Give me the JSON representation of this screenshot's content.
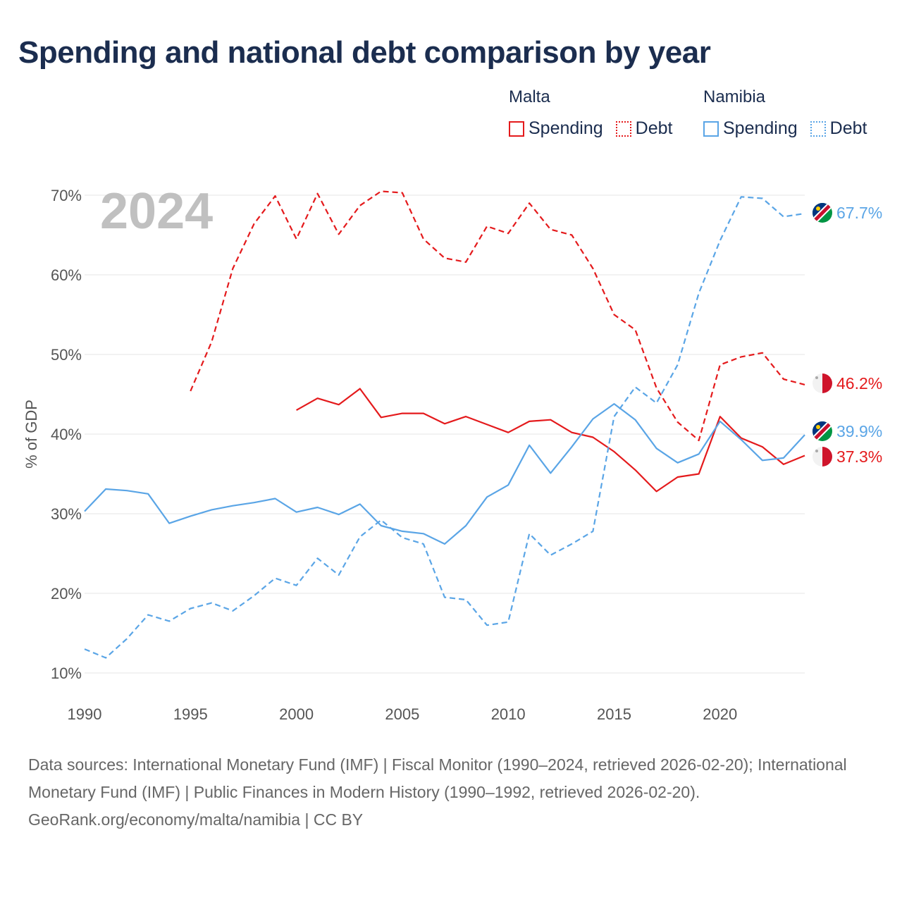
{
  "title": "Spending and national debt comparison by year",
  "legend": {
    "groups": [
      {
        "country": "Malta",
        "items": [
          {
            "label": "Spending",
            "style": "solid",
            "color": "#e41a1c"
          },
          {
            "label": "Debt",
            "style": "dotted",
            "color": "#e41a1c"
          }
        ]
      },
      {
        "country": "Namibia",
        "items": [
          {
            "label": "Spending",
            "style": "solid",
            "color": "#5aa5e6"
          },
          {
            "label": "Debt",
            "style": "dotted",
            "color": "#5aa5e6"
          }
        ]
      }
    ]
  },
  "colors": {
    "malta": "#e41a1c",
    "namibia": "#5aa5e6",
    "grid": "#e6e6e6",
    "axis_text": "#555555",
    "year_watermark": "#c0c0c0"
  },
  "chart_data": {
    "type": "line",
    "year_watermark": "2024",
    "ylabel": "% of GDP",
    "xlabel": "",
    "xlim": [
      1990,
      2024
    ],
    "ylim": [
      10,
      70
    ],
    "x_ticks": [
      1990,
      1995,
      2000,
      2005,
      2010,
      2015,
      2020
    ],
    "y_ticks": [
      10,
      20,
      30,
      40,
      50,
      60,
      70
    ],
    "y_tick_labels": [
      "10%",
      "20%",
      "30%",
      "40%",
      "50%",
      "60%",
      "70%"
    ],
    "grid": true,
    "series": [
      {
        "name": "Malta Spending",
        "country": "malta",
        "dash": false,
        "end_label": "37.3%",
        "points": [
          [
            2000,
            43.0
          ],
          [
            2001,
            44.5
          ],
          [
            2002,
            43.7
          ],
          [
            2003,
            45.7
          ],
          [
            2004,
            42.1
          ],
          [
            2005,
            42.6
          ],
          [
            2006,
            42.6
          ],
          [
            2007,
            41.3
          ],
          [
            2008,
            42.2
          ],
          [
            2009,
            41.2
          ],
          [
            2010,
            40.2
          ],
          [
            2011,
            41.6
          ],
          [
            2012,
            41.8
          ],
          [
            2013,
            40.2
          ],
          [
            2014,
            39.6
          ],
          [
            2015,
            37.8
          ],
          [
            2016,
            35.5
          ],
          [
            2017,
            32.8
          ],
          [
            2018,
            34.6
          ],
          [
            2019,
            35.0
          ],
          [
            2020,
            42.2
          ],
          [
            2021,
            39.5
          ],
          [
            2022,
            38.4
          ],
          [
            2023,
            36.2
          ],
          [
            2024,
            37.3
          ]
        ]
      },
      {
        "name": "Malta Debt",
        "country": "malta",
        "dash": true,
        "end_label": "46.2%",
        "points": [
          [
            1995,
            45.4
          ],
          [
            1996,
            51.6
          ],
          [
            1997,
            60.8
          ],
          [
            1998,
            66.4
          ],
          [
            1999,
            69.9
          ],
          [
            2000,
            64.5
          ],
          [
            2001,
            70.2
          ],
          [
            2002,
            65.1
          ],
          [
            2003,
            68.7
          ],
          [
            2004,
            70.5
          ],
          [
            2005,
            70.3
          ],
          [
            2006,
            64.5
          ],
          [
            2007,
            62.1
          ],
          [
            2008,
            61.6
          ],
          [
            2009,
            66.1
          ],
          [
            2010,
            65.2
          ],
          [
            2011,
            69.0
          ],
          [
            2012,
            65.7
          ],
          [
            2013,
            65.0
          ],
          [
            2014,
            60.8
          ],
          [
            2015,
            55.0
          ],
          [
            2016,
            53.1
          ],
          [
            2017,
            45.8
          ],
          [
            2018,
            41.5
          ],
          [
            2019,
            39.2
          ],
          [
            2020,
            48.7
          ],
          [
            2021,
            49.7
          ],
          [
            2022,
            50.2
          ],
          [
            2023,
            46.9
          ],
          [
            2024,
            46.2
          ]
        ]
      },
      {
        "name": "Namibia Spending",
        "country": "namibia",
        "dash": false,
        "end_label": "39.9%",
        "points": [
          [
            1990,
            30.3
          ],
          [
            1991,
            33.1
          ],
          [
            1992,
            32.9
          ],
          [
            1993,
            32.5
          ],
          [
            1994,
            28.8
          ],
          [
            1995,
            29.7
          ],
          [
            1996,
            30.5
          ],
          [
            1997,
            31.0
          ],
          [
            1998,
            31.4
          ],
          [
            1999,
            31.9
          ],
          [
            2000,
            30.2
          ],
          [
            2001,
            30.8
          ],
          [
            2002,
            29.9
          ],
          [
            2003,
            31.2
          ],
          [
            2004,
            28.5
          ],
          [
            2005,
            27.8
          ],
          [
            2006,
            27.5
          ],
          [
            2007,
            26.2
          ],
          [
            2008,
            28.5
          ],
          [
            2009,
            32.1
          ],
          [
            2010,
            33.6
          ],
          [
            2011,
            38.6
          ],
          [
            2012,
            35.1
          ],
          [
            2013,
            38.4
          ],
          [
            2014,
            41.9
          ],
          [
            2015,
            43.8
          ],
          [
            2016,
            41.8
          ],
          [
            2017,
            38.2
          ],
          [
            2018,
            36.4
          ],
          [
            2019,
            37.5
          ],
          [
            2020,
            41.6
          ],
          [
            2021,
            39.3
          ],
          [
            2022,
            36.7
          ],
          [
            2023,
            37.0
          ],
          [
            2024,
            39.9
          ]
        ]
      },
      {
        "name": "Namibia Debt",
        "country": "namibia",
        "dash": true,
        "end_label": "67.7%",
        "points": [
          [
            1990,
            13.0
          ],
          [
            1991,
            11.9
          ],
          [
            1992,
            14.3
          ],
          [
            1993,
            17.3
          ],
          [
            1994,
            16.5
          ],
          [
            1995,
            18.1
          ],
          [
            1996,
            18.8
          ],
          [
            1997,
            17.8
          ],
          [
            1998,
            19.7
          ],
          [
            1999,
            21.9
          ],
          [
            2000,
            21.0
          ],
          [
            2001,
            24.4
          ],
          [
            2002,
            22.3
          ],
          [
            2003,
            27.1
          ],
          [
            2004,
            29.2
          ],
          [
            2005,
            27.0
          ],
          [
            2006,
            26.2
          ],
          [
            2007,
            19.5
          ],
          [
            2008,
            19.2
          ],
          [
            2009,
            16.0
          ],
          [
            2010,
            16.4
          ],
          [
            2011,
            27.5
          ],
          [
            2012,
            24.8
          ],
          [
            2013,
            26.2
          ],
          [
            2014,
            27.8
          ],
          [
            2015,
            42.2
          ],
          [
            2016,
            45.9
          ],
          [
            2017,
            43.9
          ],
          [
            2018,
            48.7
          ],
          [
            2019,
            57.7
          ],
          [
            2020,
            64.3
          ],
          [
            2021,
            69.8
          ],
          [
            2022,
            69.6
          ],
          [
            2023,
            67.3
          ],
          [
            2024,
            67.7
          ]
        ]
      }
    ]
  },
  "footer": {
    "sources": "Data sources: International Monetary Fund (IMF) | Fiscal Monitor (1990–2024, retrieved 2026-02-20); International Monetary Fund (IMF) | Public Finances in Modern History (1990–1992, retrieved 2026-02-20).",
    "credit": "GeoRank.org/economy/malta/namibia | CC BY"
  }
}
